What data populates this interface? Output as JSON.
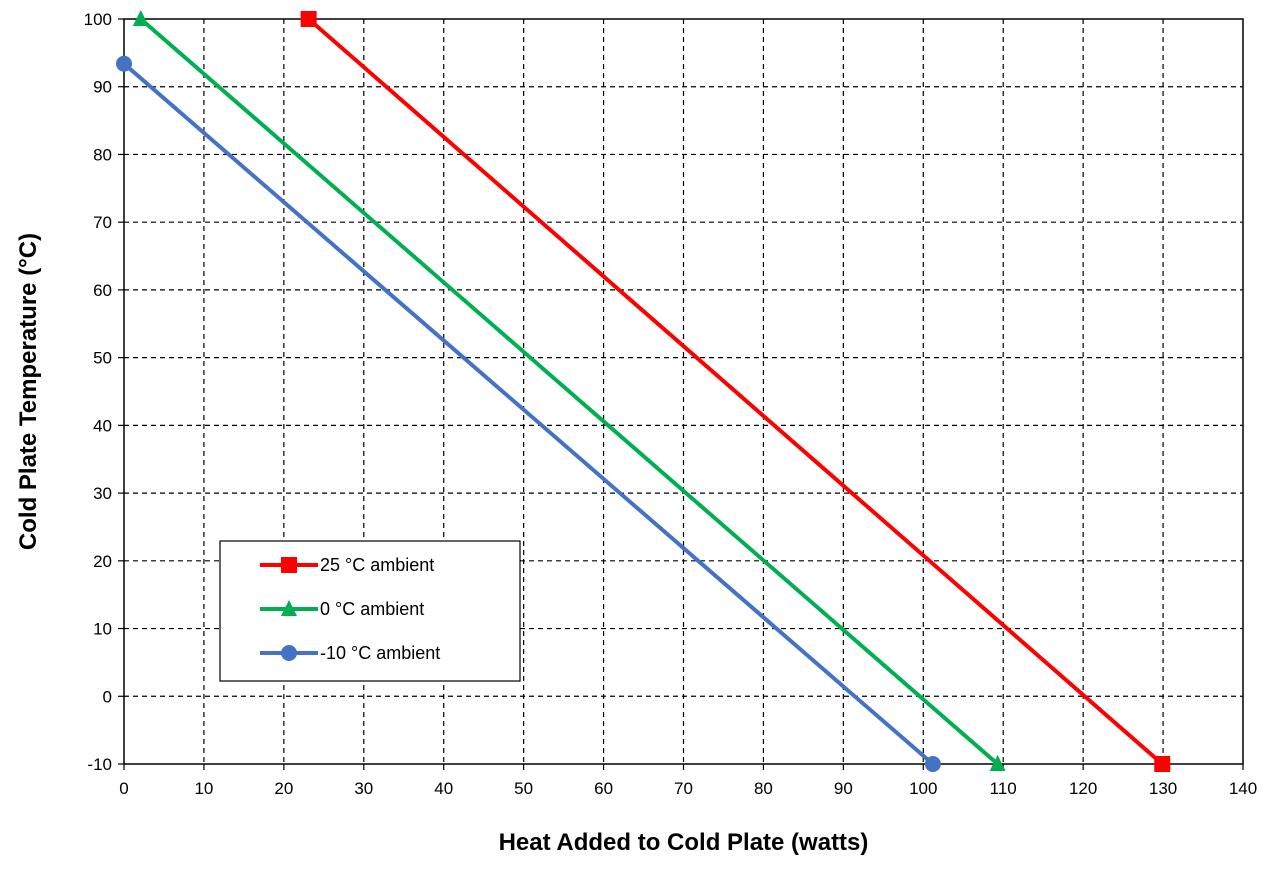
{
  "chart_data": {
    "type": "line",
    "title": "",
    "xlabel": "Heat Added to Cold Plate (watts)",
    "ylabel": "Cold Plate Temperature (°C)",
    "xlim": [
      0,
      140
    ],
    "ylim": [
      -10,
      100
    ],
    "xticks": [
      0,
      10,
      20,
      30,
      40,
      50,
      60,
      70,
      80,
      90,
      100,
      110,
      120,
      130,
      140
    ],
    "yticks": [
      -10,
      0,
      10,
      20,
      30,
      40,
      50,
      60,
      70,
      80,
      90,
      100
    ],
    "grid": true,
    "grid_style": "dashed",
    "legend_position": "lower-left",
    "series": [
      {
        "name": "25 °C ambient",
        "color": "#ff0000",
        "marker": "square",
        "x": [
          23.1,
          129.9
        ],
        "y": [
          100,
          -10
        ]
      },
      {
        "name": "0 °C ambient",
        "color": "#00b050",
        "marker": "triangle",
        "x": [
          2.1,
          109.3
        ],
        "y": [
          100,
          -10
        ]
      },
      {
        "name": "-10 °C ambient",
        "color": "#4472c4",
        "marker": "circle",
        "x": [
          0,
          101.2
        ],
        "y": [
          93.4,
          -10
        ]
      }
    ]
  }
}
